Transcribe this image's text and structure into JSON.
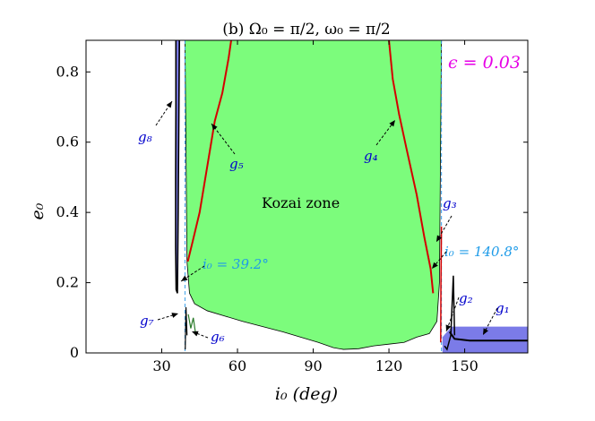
{
  "chart_data": {
    "type": "area",
    "title": "(b) Ω₀ = π/2, ω₀ = π/2",
    "xlabel": "i₀ (deg)",
    "ylabel": "e₀",
    "xlim": [
      0,
      175
    ],
    "ylim": [
      0,
      0.89
    ],
    "xticks": [
      30,
      60,
      90,
      120,
      150
    ],
    "yticks": [
      0,
      0.2,
      0.4,
      0.6,
      0.8
    ],
    "xtick_labels": [
      "30",
      "60",
      "90",
      "120",
      "150"
    ],
    "ytick_labels": [
      "0",
      "0.2",
      "0.4",
      "0.6",
      "0.8"
    ],
    "epsilon_label": "ϵ = 0.03",
    "zone_label": "Kozai zone",
    "colors": {
      "kozai_fill": "#7cfc7c",
      "blue_fill": "#7b7be8",
      "red_curve": "#d40000",
      "dashed": "#3aa0e8",
      "epsilon": "#e600e6",
      "label_blue": "#0000cc",
      "label_cyan": "#1e9be8"
    },
    "kozai_zone_boundary": {
      "left_edge_i": 39.2,
      "right_edge_i": 140.8,
      "bottom": [
        [
          40,
          0.26
        ],
        [
          41,
          0.17
        ],
        [
          43,
          0.14
        ],
        [
          48,
          0.12
        ],
        [
          55,
          0.105
        ],
        [
          62,
          0.09
        ],
        [
          70,
          0.075
        ],
        [
          78,
          0.06
        ],
        [
          85,
          0.045
        ],
        [
          92,
          0.03
        ],
        [
          98,
          0.015
        ],
        [
          102,
          0.01
        ],
        [
          108,
          0.012
        ],
        [
          114,
          0.02
        ],
        [
          120,
          0.025
        ],
        [
          126,
          0.03
        ],
        [
          131,
          0.045
        ],
        [
          136,
          0.055
        ],
        [
          139,
          0.09
        ],
        [
          140,
          0.2
        ]
      ]
    },
    "critical_inclinations": [
      {
        "label": "i₀ = 39.2°",
        "i": 39.2
      },
      {
        "label": "i₀ = 140.8°",
        "i": 140.8
      }
    ],
    "series": [
      {
        "name": "g₄",
        "points": [
          [
            137.5,
            0.17
          ],
          [
            136.5,
            0.24
          ],
          [
            134,
            0.33
          ],
          [
            131,
            0.45
          ],
          [
            127,
            0.58
          ],
          [
            124,
            0.68
          ],
          [
            121.5,
            0.78
          ],
          [
            120,
            0.89
          ]
        ]
      },
      {
        "name": "g₅",
        "points": [
          [
            40.3,
            0.26
          ],
          [
            42,
            0.31
          ],
          [
            45,
            0.4
          ],
          [
            48,
            0.53
          ],
          [
            51,
            0.66
          ],
          [
            54,
            0.74
          ],
          [
            56.5,
            0.84
          ],
          [
            57.5,
            0.89
          ]
        ]
      },
      {
        "name": "g₈",
        "points": [
          [
            35.6,
            0.89
          ],
          [
            35.6,
            0.7
          ],
          [
            35.5,
            0.5
          ],
          [
            35.5,
            0.3
          ],
          [
            35.7,
            0.18
          ],
          [
            36.2,
            0.17
          ],
          [
            36.5,
            0.4
          ],
          [
            36.8,
            0.7
          ],
          [
            37,
            0.89
          ]
        ]
      },
      {
        "name": "g₁",
        "points": [
          [
            144,
            0.06
          ],
          [
            146,
            0.04
          ],
          [
            152,
            0.035
          ],
          [
            160,
            0.035
          ],
          [
            168,
            0.035
          ],
          [
            175,
            0.035
          ]
        ]
      },
      {
        "name": "g₂",
        "points": [
          [
            142,
            0.02
          ],
          [
            143,
            0.01
          ],
          [
            144.5,
            0.05
          ],
          [
            145.5,
            0.22
          ],
          [
            146,
            0.05
          ]
        ]
      },
      {
        "name": "g₃",
        "points": [
          [
            140.5,
            0.03
          ],
          [
            140.6,
            0.2
          ],
          [
            140.8,
            0.36
          ]
        ]
      },
      {
        "name": "g₆",
        "points": [
          [
            40.5,
            0.11
          ],
          [
            41.5,
            0.07
          ],
          [
            42.5,
            0.1
          ],
          [
            43.5,
            0.05
          ]
        ]
      },
      {
        "name": "g₇",
        "points": [
          [
            39.3,
            0.01
          ],
          [
            39.6,
            0.13
          ],
          [
            40,
            0.05
          ]
        ]
      }
    ],
    "curve_labels": [
      "g₁",
      "g₂",
      "g₃",
      "g₄",
      "g₅",
      "g₆",
      "g₇",
      "g₈"
    ]
  }
}
